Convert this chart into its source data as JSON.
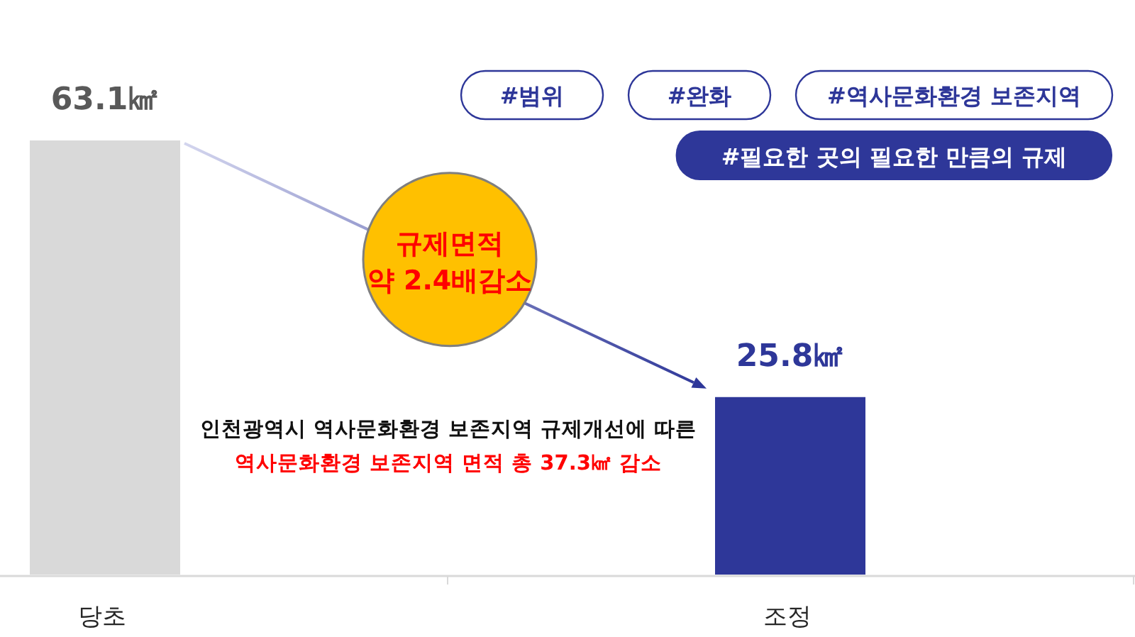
{
  "chart_data": {
    "type": "bar",
    "categories": [
      "당초",
      "조정"
    ],
    "values": [
      63.1,
      25.8
    ],
    "colors": [
      "#d9d9d9",
      "#2e3799"
    ],
    "value_labels": [
      "63.1㎢",
      "25.8㎢"
    ],
    "annotations": [
      "#범위",
      "#완화",
      "#역사문화환경 보존지역",
      "#필요한 곳의 필요한 만큼의 규제",
      "규제면적",
      "약 2.4배감소",
      "인천광역시 역사문화환경 보존지역 규제개선에 따른",
      "역사문화환경 보존지역 면적 총 37.3㎢ 감소"
    ]
  }
}
